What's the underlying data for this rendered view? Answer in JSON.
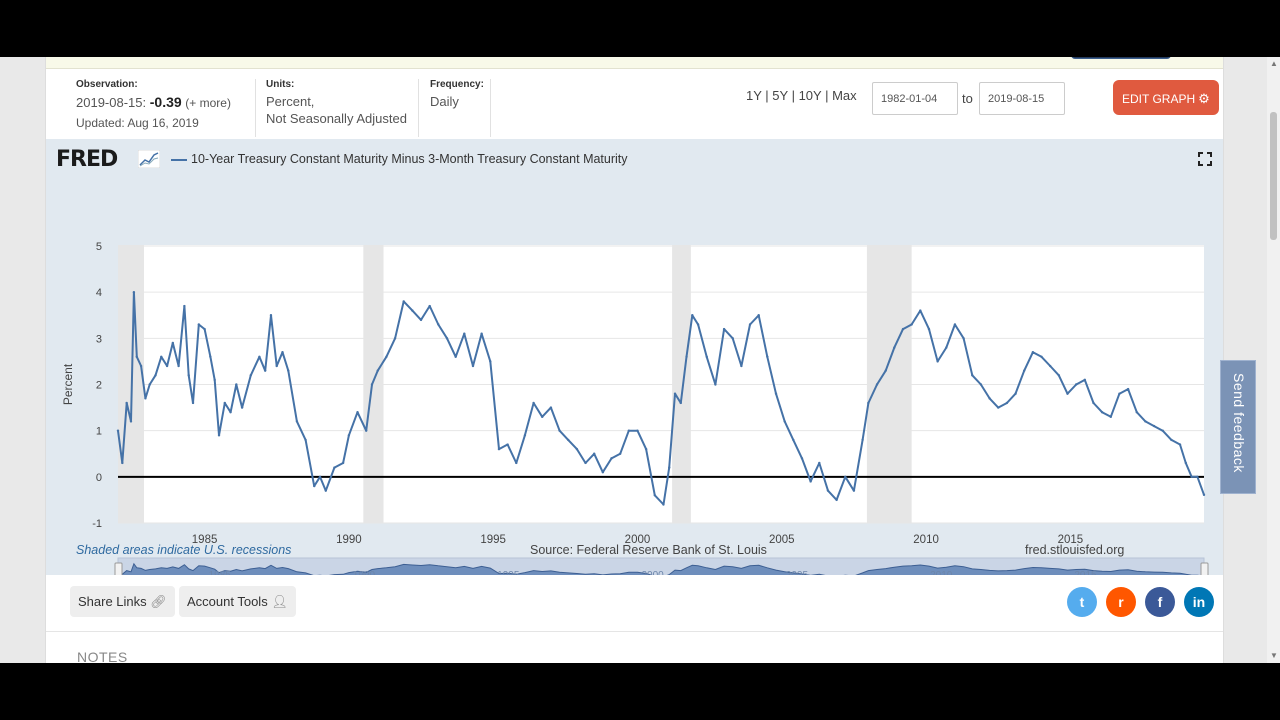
{
  "observation": {
    "label": "Observation:",
    "date": "2019-08-15:",
    "value": "-0.39",
    "more": "(+ more)",
    "updated": "Updated: Aug 16, 2019"
  },
  "units": {
    "label": "Units:",
    "line1": "Percent,",
    "line2": "Not Seasonally Adjusted"
  },
  "frequency": {
    "label": "Frequency:",
    "value": "Daily"
  },
  "ranges": [
    "1Y",
    "5Y",
    "10Y",
    "Max"
  ],
  "range_sep": " | ",
  "date_from": "1982-01-04",
  "date_to": "2019-08-15",
  "to_label": "to",
  "edit_graph": "EDIT GRAPH",
  "fred_logo": "FRED",
  "series_name": "10-Year Treasury Constant Maturity Minus 3-Month Treasury Constant Maturity",
  "recession_note": "Shaded areas indicate U.S. recessions",
  "source": "Source: Federal Reserve Bank of St. Louis",
  "site": "fred.stlouisfed.org",
  "share_links": "Share Links",
  "account_tools": "Account Tools",
  "notes": "NOTES",
  "feedback": "Send feedback",
  "colors": {
    "series": "#4572a7",
    "edit_button": "#e05a3f",
    "panel": "#e1e9f0",
    "recession": "#e6e6e6",
    "twitter": "#55acee",
    "reddit": "#ff5700",
    "facebook": "#3b5998",
    "linkedin": "#0077b5"
  },
  "social": [
    {
      "name": "twitter",
      "glyph": "t"
    },
    {
      "name": "reddit",
      "glyph": "r"
    },
    {
      "name": "facebook",
      "glyph": "f"
    },
    {
      "name": "linkedin",
      "glyph": "in"
    }
  ],
  "chart_data": {
    "type": "line",
    "ylabel": "Percent",
    "xlim": [
      1982.0,
      2019.63
    ],
    "ylim": [
      -1,
      5
    ],
    "y_ticks": [
      5,
      4,
      3,
      2,
      1,
      0,
      -1
    ],
    "x_ticks": [
      1985,
      1990,
      1995,
      2000,
      2005,
      2010,
      2015
    ],
    "recessions": [
      [
        1982.0,
        1982.9
      ],
      [
        1990.5,
        1991.2
      ],
      [
        2001.2,
        2001.85
      ],
      [
        2007.95,
        2009.5
      ]
    ],
    "series": [
      {
        "name": "10-Year Treasury Constant Maturity Minus 3-Month Treasury Constant Maturity",
        "x": [
          1982.0,
          1982.15,
          1982.3,
          1982.45,
          1982.55,
          1982.65,
          1982.8,
          1982.95,
          1983.1,
          1983.3,
          1983.5,
          1983.7,
          1983.9,
          1984.1,
          1984.3,
          1984.45,
          1984.6,
          1984.8,
          1985.0,
          1985.2,
          1985.35,
          1985.5,
          1985.7,
          1985.9,
          1986.1,
          1986.3,
          1986.6,
          1986.9,
          1987.1,
          1987.3,
          1987.5,
          1987.7,
          1987.9,
          1988.2,
          1988.5,
          1988.8,
          1989.0,
          1989.2,
          1989.5,
          1989.8,
          1990.0,
          1990.3,
          1990.6,
          1990.8,
          1991.0,
          1991.3,
          1991.6,
          1991.9,
          1992.2,
          1992.5,
          1992.8,
          1993.1,
          1993.4,
          1993.7,
          1994.0,
          1994.3,
          1994.6,
          1994.9,
          1995.2,
          1995.5,
          1995.8,
          1996.1,
          1996.4,
          1996.7,
          1997.0,
          1997.3,
          1997.6,
          1997.9,
          1998.2,
          1998.5,
          1998.8,
          1999.1,
          1999.4,
          1999.7,
          2000.0,
          2000.3,
          2000.6,
          2000.9,
          2001.1,
          2001.3,
          2001.5,
          2001.7,
          2001.9,
          2002.1,
          2002.4,
          2002.7,
          2003.0,
          2003.3,
          2003.6,
          2003.9,
          2004.2,
          2004.5,
          2004.8,
          2005.1,
          2005.4,
          2005.7,
          2006.0,
          2006.3,
          2006.6,
          2006.9,
          2007.2,
          2007.5,
          2007.8,
          2008.0,
          2008.3,
          2008.6,
          2008.9,
          2009.2,
          2009.5,
          2009.8,
          2010.1,
          2010.4,
          2010.7,
          2011.0,
          2011.3,
          2011.6,
          2011.9,
          2012.2,
          2012.5,
          2012.8,
          2013.1,
          2013.4,
          2013.7,
          2014.0,
          2014.3,
          2014.6,
          2014.9,
          2015.2,
          2015.5,
          2015.8,
          2016.1,
          2016.4,
          2016.7,
          2017.0,
          2017.3,
          2017.6,
          2017.9,
          2018.2,
          2018.5,
          2018.8,
          2019.0,
          2019.2,
          2019.4,
          2019.63
        ],
        "values": [
          1.0,
          0.3,
          1.6,
          1.2,
          4.0,
          2.6,
          2.4,
          1.7,
          2.0,
          2.2,
          2.6,
          2.4,
          2.9,
          2.4,
          3.7,
          2.2,
          1.6,
          3.3,
          3.2,
          2.6,
          2.1,
          0.9,
          1.6,
          1.4,
          2.0,
          1.5,
          2.2,
          2.6,
          2.3,
          3.5,
          2.4,
          2.7,
          2.3,
          1.2,
          0.8,
          -0.2,
          0.0,
          -0.3,
          0.2,
          0.3,
          0.9,
          1.4,
          1.0,
          2.0,
          2.3,
          2.6,
          3.0,
          3.8,
          3.6,
          3.4,
          3.7,
          3.3,
          3.0,
          2.6,
          3.1,
          2.4,
          3.1,
          2.5,
          0.6,
          0.7,
          0.3,
          0.9,
          1.6,
          1.3,
          1.5,
          1.0,
          0.8,
          0.6,
          0.3,
          0.5,
          0.1,
          0.4,
          0.5,
          1.0,
          1.0,
          0.6,
          -0.4,
          -0.6,
          0.2,
          1.8,
          1.6,
          2.6,
          3.5,
          3.3,
          2.6,
          2.0,
          3.2,
          3.0,
          2.4,
          3.3,
          3.5,
          2.6,
          1.8,
          1.2,
          0.8,
          0.4,
          -0.1,
          0.3,
          -0.3,
          -0.5,
          0.0,
          -0.3,
          0.8,
          1.6,
          2.0,
          2.3,
          2.8,
          3.2,
          3.3,
          3.6,
          3.2,
          2.5,
          2.8,
          3.3,
          3.0,
          2.2,
          2.0,
          1.7,
          1.5,
          1.6,
          1.8,
          2.3,
          2.7,
          2.6,
          2.4,
          2.2,
          1.8,
          2.0,
          2.1,
          1.6,
          1.4,
          1.3,
          1.8,
          1.9,
          1.4,
          1.2,
          1.1,
          1.0,
          0.8,
          0.7,
          0.3,
          0.0,
          0.0,
          -0.39
        ]
      }
    ]
  }
}
